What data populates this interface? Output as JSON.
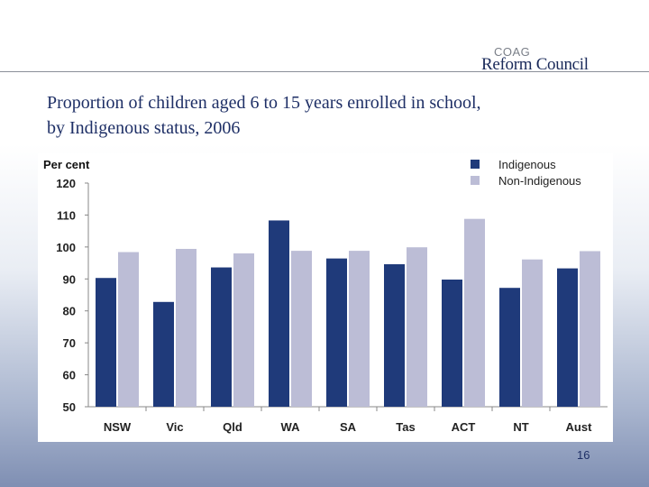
{
  "logo": {
    "line1": "COAG",
    "line2": "Reform Council"
  },
  "slide": {
    "title_line1": "Proportion of children aged 6 to 15 years enrolled in school,",
    "title_line2": "by Indigenous status, 2006",
    "page_number": "16"
  },
  "chart_data": {
    "type": "bar",
    "ylabel": "Per cent",
    "xlabel": "",
    "ylim": [
      50,
      120
    ],
    "yticks": [
      50,
      60,
      70,
      80,
      90,
      100,
      110,
      120
    ],
    "grid": false,
    "legend_position": "top-right",
    "categories": [
      "NSW",
      "Vic",
      "Qld",
      "WA",
      "SA",
      "Tas",
      "ACT",
      "NT",
      "Aust"
    ],
    "series": [
      {
        "name": "Indigenous",
        "color": "#1f3a7a",
        "values": [
          90.3,
          82.8,
          93.6,
          108.3,
          96.4,
          94.6,
          89.8,
          87.2,
          93.3
        ]
      },
      {
        "name": "Non-Indigenous",
        "color": "#bcbdd6",
        "values": [
          98.4,
          99.4,
          98.0,
          98.8,
          98.8,
          99.9,
          108.8,
          96.1,
          98.7
        ]
      }
    ]
  }
}
